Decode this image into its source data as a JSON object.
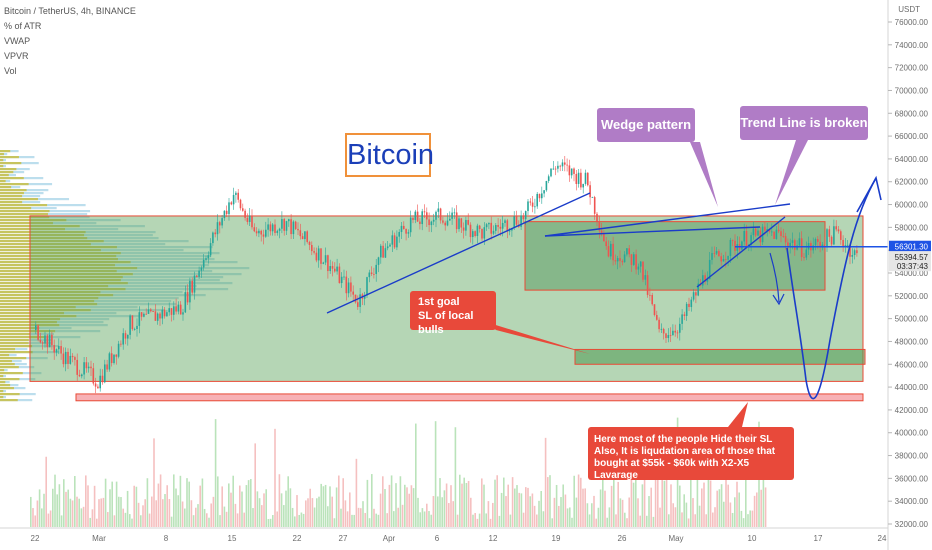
{
  "header": {
    "symbol_line": "Bitcoin / TetherUS, 4h, BINANCE",
    "indicators": [
      "% of ATR",
      "VWAP",
      "VPVR",
      "Vol"
    ],
    "currency": "USDT"
  },
  "price_axis": {
    "ticks": [
      "76000.00",
      "74000.00",
      "72000.00",
      "70000.00",
      "68000.00",
      "66000.00",
      "64000.00",
      "62000.00",
      "60000.00",
      "58000.00",
      "56000.00",
      "54000.00",
      "52000.00",
      "50000.00",
      "48000.00",
      "46000.00",
      "44000.00",
      "42000.00",
      "40000.00",
      "38000.00",
      "36000.00",
      "34000.00",
      "32000.00"
    ],
    "tags": [
      {
        "value": "56301.30",
        "price": 56301.3,
        "color": "#1e53e5"
      },
      {
        "value": "55394.57",
        "price": 55394.57,
        "color": "#e6e6e6"
      },
      {
        "value": "03:37:43",
        "price": 54600,
        "color": "#e6e6e6"
      }
    ]
  },
  "time_axis": {
    "ticks": [
      "22",
      "Mar",
      "8",
      "15",
      "22",
      "27",
      "Apr",
      "6",
      "12",
      "19",
      "26",
      "May",
      "10",
      "17",
      "24"
    ]
  },
  "annotations": {
    "bitcoin_label": "Bitcoin",
    "wedge_label": "Wedge pattern",
    "trendline_label": "Trend Line is broken",
    "goal_label": [
      "1st goal",
      "SL of local bulls"
    ],
    "liquidation_label": [
      "Here most of the people Hide their SL",
      "Also, It is liqudation area of those that",
      "bought at $55k - $60k with X2-X5 Lavarage"
    ]
  },
  "chart_data": {
    "type": "candlestick",
    "symbol": "Bitcoin / TetherUS",
    "interval": "4h",
    "exchange": "BINANCE",
    "y_range": [
      32000,
      77000
    ],
    "last_price": 56301.3,
    "approx_path": [
      [
        "Feb 22",
        49000
      ],
      [
        "Feb 25",
        46500
      ],
      [
        "Feb 28",
        44500
      ],
      [
        "Mar 3",
        49500
      ],
      [
        "Mar 8",
        51000
      ],
      [
        "Mar 10",
        55000
      ],
      [
        "Mar 13",
        61000
      ],
      [
        "Mar 15",
        57500
      ],
      [
        "Mar 18",
        58500
      ],
      [
        "Mar 22",
        55000
      ],
      [
        "Mar 25",
        51500
      ],
      [
        "Mar 27",
        55500
      ],
      [
        "Mar 30",
        58500
      ],
      [
        "Apr 2",
        59000
      ],
      [
        "Apr 6",
        57500
      ],
      [
        "Apr 10",
        59000
      ],
      [
        "Apr 13",
        63500
      ],
      [
        "Apr 16",
        62000
      ],
      [
        "Apr 18",
        56000
      ],
      [
        "Apr 21",
        55000
      ],
      [
        "Apr 23",
        48500
      ],
      [
        "Apr 25",
        49500
      ],
      [
        "Apr 28",
        55000
      ],
      [
        "May 1",
        57000
      ],
      [
        "May 4",
        57500
      ],
      [
        "May 7",
        56000
      ],
      [
        "May 10",
        57500
      ],
      [
        "May 12",
        55400
      ]
    ],
    "zones": [
      {
        "name": "range",
        "low": 44500,
        "high": 59000
      },
      {
        "name": "consolidation",
        "low": 52500,
        "high": 58500
      },
      {
        "name": "1st goal",
        "low": 46000,
        "high": 47300
      },
      {
        "name": "liquidation",
        "low": 42800,
        "high": 43400
      }
    ]
  }
}
